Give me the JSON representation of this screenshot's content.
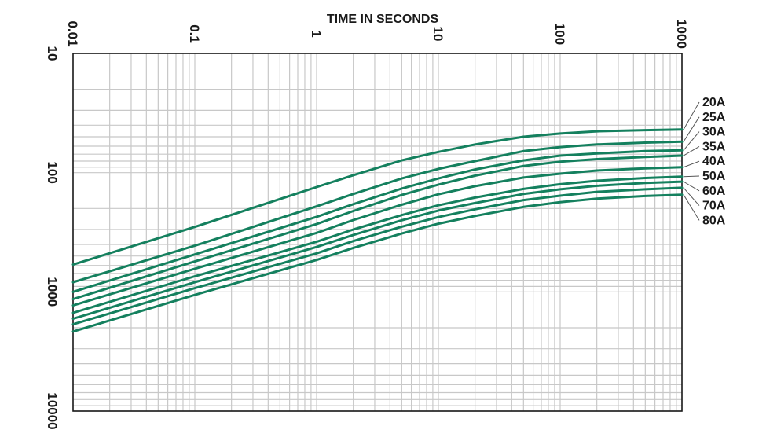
{
  "chart_data": {
    "type": "line",
    "title": "TIME IN SECONDS",
    "x_axis": {
      "scale": "log",
      "range": [
        0.01,
        1000
      ],
      "ticks": [
        {
          "value": 0.01,
          "label": "0.01"
        },
        {
          "value": 0.1,
          "label": "0.1"
        },
        {
          "value": 1,
          "label": "1"
        },
        {
          "value": 10,
          "label": "10"
        },
        {
          "value": 100,
          "label": "100"
        },
        {
          "value": 1000,
          "label": "1000"
        }
      ]
    },
    "y_axis": {
      "scale": "log",
      "inverted": true,
      "range": [
        10,
        10000
      ],
      "ticks": [
        {
          "value": 10,
          "label": "10"
        },
        {
          "value": 100,
          "label": "100"
        },
        {
          "value": 1000,
          "label": "1000"
        },
        {
          "value": 10000,
          "label": "10000"
        }
      ]
    },
    "grid": true,
    "legend_position": "right",
    "line_color": "#14805e",
    "series": [
      {
        "name": "20A",
        "x": [
          0.01,
          0.1,
          1,
          2,
          5,
          10,
          20,
          50,
          100,
          200,
          500,
          1000
        ],
        "y": [
          590,
          285,
          132,
          105,
          79,
          67,
          58,
          50,
          47,
          45,
          44,
          43.5
        ]
      },
      {
        "name": "25A",
        "x": [
          0.01,
          0.1,
          1,
          2,
          5,
          10,
          20,
          50,
          100,
          200,
          500,
          1000
        ],
        "y": [
          830,
          410,
          192,
          151,
          112,
          93,
          80,
          66,
          61,
          58,
          56,
          55
        ]
      },
      {
        "name": "30A",
        "x": [
          0.01,
          0.1,
          1,
          2,
          5,
          10,
          20,
          50,
          100,
          200,
          500,
          1000
        ],
        "y": [
          1000,
          485,
          235,
          184,
          136,
          112,
          94,
          79,
          72,
          69,
          66,
          65
        ]
      },
      {
        "name": "35A",
        "x": [
          0.01,
          0.1,
          1,
          2,
          5,
          10,
          20,
          50,
          100,
          200,
          500,
          1000
        ],
        "y": [
          1150,
          555,
          270,
          210,
          154,
          126,
          106,
          88,
          81,
          77,
          74,
          72
        ]
      },
      {
        "name": "40A",
        "x": [
          0.01,
          0.1,
          1,
          2,
          5,
          10,
          20,
          50,
          100,
          200,
          500,
          1000
        ],
        "y": [
          1300,
          640,
          320,
          250,
          186,
          152,
          130,
          110,
          102,
          96,
          92,
          90
        ]
      },
      {
        "name": "50A",
        "x": [
          0.01,
          0.1,
          1,
          2,
          5,
          10,
          20,
          50,
          100,
          200,
          500,
          1000
        ],
        "y": [
          1500,
          740,
          380,
          300,
          227,
          188,
          162,
          137,
          125,
          117,
          111,
          108
        ]
      },
      {
        "name": "60A",
        "x": [
          0.01,
          0.1,
          1,
          2,
          5,
          10,
          20,
          50,
          100,
          200,
          500,
          1000
        ],
        "y": [
          1680,
          830,
          420,
          333,
          251,
          208,
          180,
          151,
          138,
          129,
          122,
          119
        ]
      },
      {
        "name": "70A",
        "x": [
          0.01,
          0.1,
          1,
          2,
          5,
          10,
          20,
          50,
          100,
          200,
          500,
          1000
        ],
        "y": [
          1870,
          930,
          475,
          375,
          284,
          236,
          203,
          170,
          156,
          145,
          138,
          134
        ]
      },
      {
        "name": "80A",
        "x": [
          0.01,
          0.1,
          1,
          2,
          5,
          10,
          20,
          50,
          100,
          200,
          500,
          1000
        ],
        "y": [
          2150,
          1060,
          540,
          428,
          324,
          268,
          231,
          194,
          177,
          165,
          157,
          153
        ]
      }
    ]
  }
}
